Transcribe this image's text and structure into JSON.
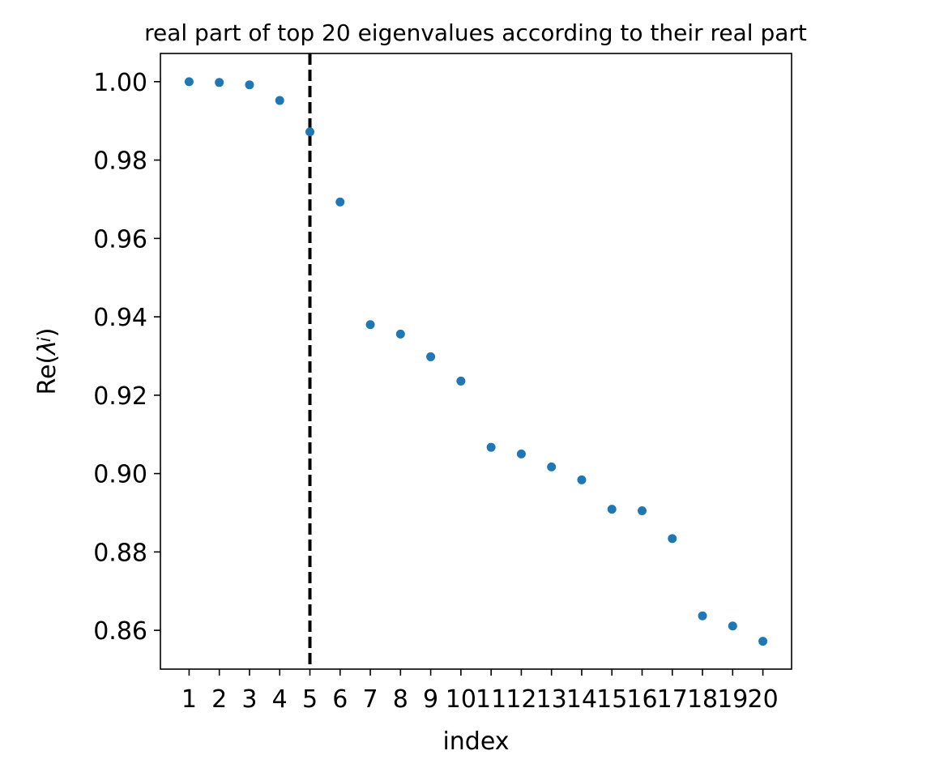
{
  "chart_data": {
    "type": "scatter",
    "title": "real part of top 20 eigenvalues according to their real part",
    "xlabel": "index",
    "ylabel": {
      "prefix": "Re(",
      "symbol": "λ",
      "subscript": "i",
      "suffix": ")"
    },
    "x": [
      1,
      2,
      3,
      4,
      5,
      6,
      7,
      8,
      9,
      10,
      11,
      12,
      13,
      14,
      15,
      16,
      17,
      18,
      19,
      20
    ],
    "x_ticks": [
      "1",
      "2",
      "3",
      "4",
      "5",
      "6",
      "7",
      "8",
      "9",
      "10",
      "11",
      "12",
      "13",
      "14",
      "15",
      "16",
      "17",
      "18",
      "19",
      "20"
    ],
    "y": [
      1.0,
      0.9998,
      0.9992,
      0.9952,
      0.9872,
      0.9693,
      0.938,
      0.9356,
      0.9298,
      0.9236,
      0.9067,
      0.905,
      0.9017,
      0.8984,
      0.8909,
      0.8905,
      0.8834,
      0.8637,
      0.8611,
      0.8572
    ],
    "y_ticks": [
      "0.86",
      "0.88",
      "0.90",
      "0.92",
      "0.94",
      "0.96",
      "0.98",
      "1.00"
    ],
    "y_tick_values": [
      0.86,
      0.88,
      0.9,
      0.92,
      0.94,
      0.96,
      0.98,
      1.0
    ],
    "xlim": [
      0.05,
      20.95
    ],
    "ylim": [
      0.8501,
      1.0072
    ],
    "vline": {
      "x": 5,
      "style": "dashed",
      "color": "#000000"
    },
    "marker_color": "#1f77b4",
    "grid": false
  }
}
